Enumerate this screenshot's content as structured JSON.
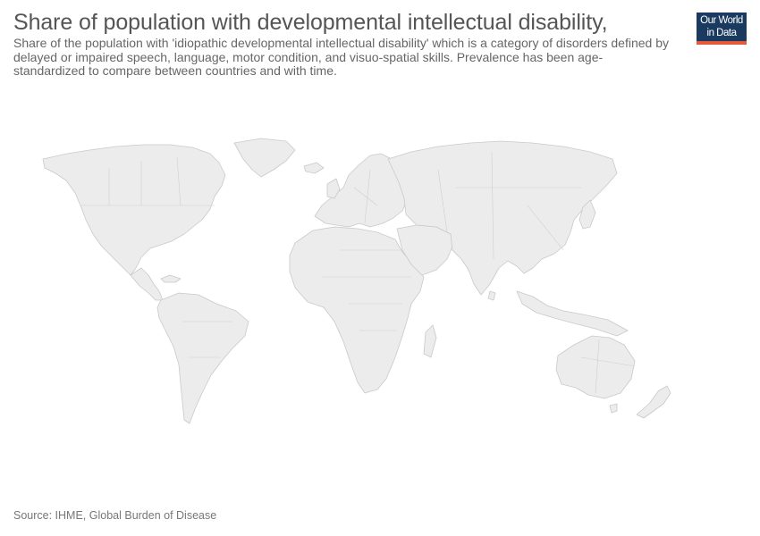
{
  "header": {
    "title": "Share of population with developmental intellectual disability,",
    "subtitle": "Share of the population with 'idiopathic developmental intellectual disability' which is a category of disorders defined by delayed or impaired speech, language, motor condition, and visuo-spatial skills. Prevalence has been age-standardized to compare between countries and with time."
  },
  "logo": {
    "line1": "Our World",
    "line2": "in Data",
    "bg_color": "#1a3a5f",
    "accent_color": "#e35a3c"
  },
  "map": {
    "fill_color": "#ececec",
    "border_color": "#c9c9c9"
  },
  "footer": {
    "source": "Source: IHME, Global Burden of Disease"
  }
}
